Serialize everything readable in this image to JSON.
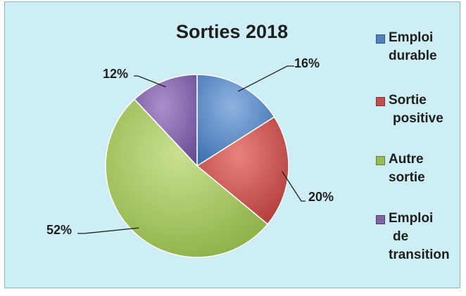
{
  "chart_data": {
    "type": "pie",
    "title": "Sorties 2018",
    "slices": [
      {
        "name": "Emploi durable",
        "value": 16,
        "label": "16%",
        "color": "#4f81bd"
      },
      {
        "name": "Sortie positive",
        "value": 20,
        "label": "20%",
        "color": "#c0504d"
      },
      {
        "name": "Autre sortie",
        "value": 52,
        "label": "52%",
        "color": "#9bbb59"
      },
      {
        "name": "Emploi de transition",
        "value": 12,
        "label": "12%",
        "color": "#8064a2"
      }
    ],
    "legend": {
      "placement": "right",
      "entries": [
        [
          "Emploi",
          "durable"
        ],
        [
          "Sortie",
          "positive"
        ],
        [
          "Autre",
          "sortie"
        ],
        [
          "Emploi",
          "de",
          "transition"
        ]
      ]
    },
    "background_color": "#cdeef5"
  }
}
